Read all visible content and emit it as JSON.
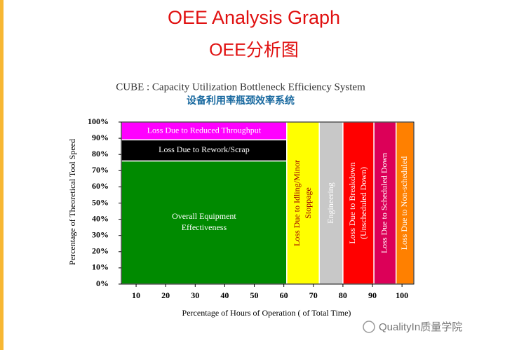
{
  "chart_data": {
    "type": "block",
    "title": "OEE Analysis Graph",
    "subtitle": "OEE分析图",
    "caption": "CUBE : Capacity Utilization Bottleneck Efficiency System",
    "caption_cn": "设备利用率瓶颈效率系统",
    "x_label": "Percentage of Hours of Operation ( of Total Time)",
    "y_label": "Percentage of Theoretical Tool Speed",
    "xlim": [
      5,
      104
    ],
    "ylim": [
      0,
      100
    ],
    "xticks": [
      10,
      20,
      30,
      40,
      50,
      60,
      70,
      80,
      90,
      100
    ],
    "yticks": [
      {
        "value": 0,
        "label": "0%"
      },
      {
        "value": 10,
        "label": "10%"
      },
      {
        "value": 20,
        "label": "20%"
      },
      {
        "value": 30,
        "label": "30%"
      },
      {
        "value": 40,
        "label": "40%"
      },
      {
        "value": 50,
        "label": "50%"
      },
      {
        "value": 60,
        "label": "60%"
      },
      {
        "value": 70,
        "label": "70%"
      },
      {
        "value": 80,
        "label": "80%"
      },
      {
        "value": 90,
        "label": "90%"
      },
      {
        "value": 100,
        "label": "100%"
      }
    ],
    "grid": false,
    "blocks": [
      {
        "label": [
          "Overall Equipment",
          "Effectiveness"
        ],
        "x0": 5,
        "x1": 61,
        "y0": 0,
        "y1": 76,
        "color": "#008a00",
        "text_color": "#ffffff",
        "vertical": false
      },
      {
        "label": [
          "Loss Due to Reduced Throughput"
        ],
        "x0": 5,
        "x1": 61,
        "y0": 89,
        "y1": 100,
        "color": "#ff00ff",
        "text_color": "#ffffff",
        "vertical": false
      },
      {
        "label": [
          "Loss Due to Rework/Scrap"
        ],
        "x0": 5,
        "x1": 61,
        "y0": 76,
        "y1": 89,
        "color": "#000000",
        "text_color": "#ffffff",
        "vertical": false
      },
      {
        "label": [
          "Loss Due to Idling/Minor",
          "Stoppage"
        ],
        "x0": 61,
        "x1": 72,
        "y0": 0,
        "y1": 100,
        "color": "#ffff00",
        "text_color": "#a00000",
        "vertical": true
      },
      {
        "label": [
          "Engineering"
        ],
        "x0": 72,
        "x1": 80,
        "y0": 0,
        "y1": 100,
        "color": "#c8c8c8",
        "text_color": "#ffffff",
        "vertical": true
      },
      {
        "label": [
          "Loss Due to Breakdown",
          "(Unscheduled Down)"
        ],
        "x0": 80,
        "x1": 90.5,
        "y0": 0,
        "y1": 100,
        "color": "#ff0000",
        "text_color": "#ffffff",
        "vertical": true
      },
      {
        "label": [
          "Loss Due to Scheduled Down"
        ],
        "x0": 90.5,
        "x1": 98,
        "y0": 0,
        "y1": 100,
        "color": "#dc0058",
        "text_color": "#ffffff",
        "vertical": true
      },
      {
        "label": [
          "Loss Due to Non-scheduled"
        ],
        "x0": 98,
        "x1": 104,
        "y0": 0,
        "y1": 100,
        "color": "#ff8000",
        "text_color": "#ffffff",
        "vertical": true
      }
    ]
  },
  "watermark": "QualityIn质量学院"
}
